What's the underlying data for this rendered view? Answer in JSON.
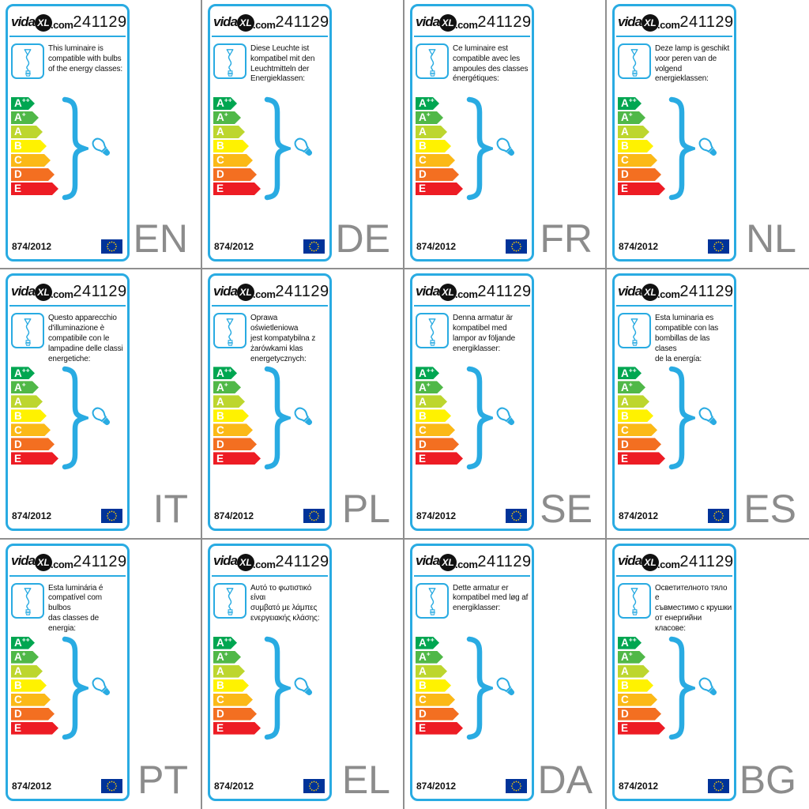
{
  "logo": {
    "vida": "vida",
    "xl": "XL",
    "com": ".com"
  },
  "product_number": "241129",
  "regulation": "874/2012",
  "accent_color": "#29abe2",
  "divider_color": "#8f8f8f",
  "lang_code_color": "#8c8c8c",
  "eu_flag": {
    "background": "#003399",
    "stars": "#ffcc00"
  },
  "icons": {
    "lamp": "pendant-lamp-icon",
    "bulb": "light-bulb-icon",
    "brace": "curly-brace-icon",
    "flag": "eu-flag-icon"
  },
  "energy_classes": [
    {
      "label": "A",
      "sup": "++",
      "color": "#00a651"
    },
    {
      "label": "A",
      "sup": "+",
      "color": "#50b848"
    },
    {
      "label": "A",
      "sup": "",
      "color": "#bdd62e"
    },
    {
      "label": "B",
      "sup": "",
      "color": "#fff200"
    },
    {
      "label": "C",
      "sup": "",
      "color": "#fbb917"
    },
    {
      "label": "D",
      "sup": "",
      "color": "#f36f21"
    },
    {
      "label": "E",
      "sup": "",
      "color": "#ed1c24"
    }
  ],
  "cards": [
    {
      "lang": "EN",
      "description": "This luminaire is\ncompatible with bulbs\nof the energy classes:"
    },
    {
      "lang": "DE",
      "description": "Diese Leuchte ist\nkompatibel mit den\nLeuchtmitteln der\nEnergieklassen:"
    },
    {
      "lang": "FR",
      "description": "Ce luminaire est\ncompatible avec les\nampoules des classes\nénergétiques:"
    },
    {
      "lang": "NL",
      "description": "Deze lamp is geschikt\nvoor peren van de\nvolgend energieklassen:"
    },
    {
      "lang": "IT",
      "description": "Questo apparecchio\nd'illuminazione è\ncompatibile con le\nlampadine delle classi\nenergetiche:"
    },
    {
      "lang": "PL",
      "description": "Oprawa oświetleniowa\njest kompatybilna z\nżarówkami klas\nenergetycznych:"
    },
    {
      "lang": "SE",
      "description": "Denna armatur är\nkompatibel med\nlampor av följande\nenergiklasser:"
    },
    {
      "lang": "ES",
      "description": "Esta luminaria es\ncompatible con las\nbombillas de las clases\nde la energía:"
    },
    {
      "lang": "PT",
      "description": "Esta luminária é\ncompatível com bulbos\ndas classes de energia:"
    },
    {
      "lang": "EL",
      "description": "Αυτό το φωτιστικό είναι\nσυμβατό με λάμπες\nενεργειακής κλάσης:"
    },
    {
      "lang": "DA",
      "description": "Dette armatur er\nkompatibel med løg af\nenergiklasser:"
    },
    {
      "lang": "BG",
      "description": "Осветителното тяло е\nсъвместимо с крушки\nот енергийни класове:"
    }
  ]
}
